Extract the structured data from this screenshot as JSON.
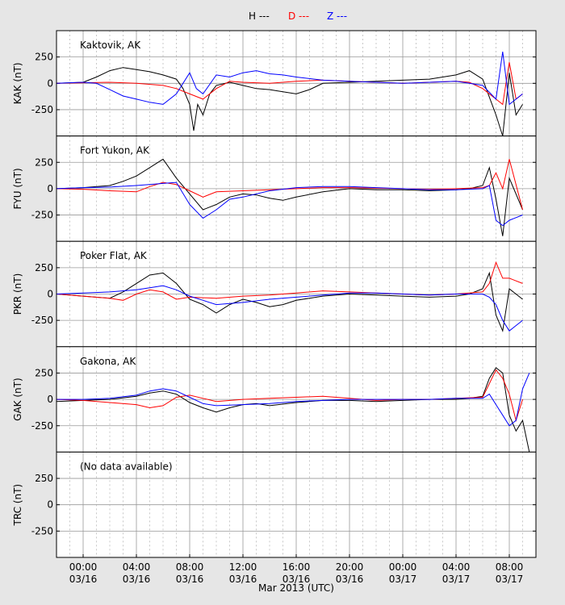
{
  "legend": [
    {
      "label": "H ---",
      "color": "#000000"
    },
    {
      "label": "D ---",
      "color": "#ff0000"
    },
    {
      "label": "Z ---",
      "color": "#0000ff"
    }
  ],
  "chart_data": {
    "type": "line",
    "xlabel": "Mar 2013 (UTC)",
    "xlim_hours": [
      -2.0,
      34.0
    ],
    "xticks": [
      {
        "hour": 0,
        "time": "00:00",
        "date": "03/16"
      },
      {
        "hour": 4,
        "time": "04:00",
        "date": "03/16"
      },
      {
        "hour": 8,
        "time": "08:00",
        "date": "03/16"
      },
      {
        "hour": 12,
        "time": "12:00",
        "date": "03/16"
      },
      {
        "hour": 16,
        "time": "16:00",
        "date": "03/16"
      },
      {
        "hour": 20,
        "time": "20:00",
        "date": "03/16"
      },
      {
        "hour": 24,
        "time": "00:00",
        "date": "03/17"
      },
      {
        "hour": 28,
        "time": "04:00",
        "date": "03/17"
      },
      {
        "hour": 32,
        "time": "08:00",
        "date": "03/17"
      }
    ],
    "ylim": [
      -500,
      500
    ],
    "yticks": [
      250,
      0,
      -250
    ],
    "grid": true,
    "legend_position": "top-center",
    "panels": [
      {
        "station": "Kaktovik, AK",
        "ylabel": "KAK (nT)",
        "series": [
          {
            "name": "H",
            "color": "#000000",
            "x": [
              -2,
              0,
              1,
              2,
              3,
              4,
              5,
              6,
              7,
              7.5,
              8,
              8.3,
              8.6,
              9,
              9.5,
              10,
              11,
              12,
              13,
              14,
              15,
              16,
              17,
              18,
              20,
              22,
              24,
              26,
              28,
              29,
              30,
              31,
              31.5,
              32,
              32.5,
              33
            ],
            "y": [
              0,
              10,
              60,
              120,
              150,
              130,
              110,
              80,
              40,
              -50,
              -200,
              -450,
              -200,
              -300,
              -100,
              -20,
              10,
              -20,
              -50,
              -60,
              -80,
              -100,
              -60,
              0,
              10,
              20,
              30,
              40,
              80,
              120,
              40,
              -300,
              -500,
              100,
              -300,
              -200
            ]
          },
          {
            "name": "D",
            "color": "#ff0000",
            "x": [
              -2,
              0,
              2,
              4,
              6,
              7,
              8,
              9,
              10,
              11,
              12,
              14,
              16,
              18,
              20,
              22,
              24,
              26,
              28,
              29,
              30,
              31,
              31.5,
              32,
              32.5,
              33
            ],
            "y": [
              0,
              5,
              10,
              0,
              -20,
              -50,
              -100,
              -150,
              -50,
              20,
              10,
              0,
              20,
              30,
              20,
              10,
              0,
              10,
              20,
              10,
              -50,
              -150,
              -200,
              200,
              -150,
              -100
            ]
          },
          {
            "name": "Z",
            "color": "#0000ff",
            "x": [
              -2,
              0,
              1,
              2,
              3,
              4,
              5,
              6,
              7,
              8,
              8.5,
              9,
              10,
              11,
              12,
              13,
              14,
              15,
              16,
              18,
              20,
              22,
              24,
              26,
              28,
              29,
              30,
              31,
              31.5,
              32,
              32.5,
              33
            ],
            "y": [
              0,
              10,
              0,
              -60,
              -120,
              -150,
              -180,
              -200,
              -100,
              100,
              -50,
              -100,
              80,
              60,
              100,
              120,
              90,
              80,
              60,
              30,
              20,
              10,
              0,
              10,
              20,
              0,
              -20,
              -150,
              300,
              -200,
              -150,
              -100
            ]
          }
        ]
      },
      {
        "station": "Fort Yukon, AK",
        "ylabel": "FYU (nT)",
        "series": [
          {
            "name": "H",
            "color": "#000000",
            "x": [
              -2,
              0,
              2,
              3,
              4,
              5,
              6,
              7,
              8,
              9,
              10,
              11,
              12,
              13,
              14,
              15,
              16,
              18,
              20,
              22,
              24,
              26,
              28,
              29,
              30,
              30.5,
              31,
              31.5,
              32,
              33
            ],
            "y": [
              0,
              10,
              30,
              70,
              120,
              200,
              280,
              100,
              -50,
              -200,
              -150,
              -80,
              -50,
              -60,
              -90,
              -110,
              -80,
              -30,
              0,
              -10,
              -10,
              -20,
              -10,
              0,
              30,
              200,
              -100,
              -450,
              100,
              -200
            ]
          },
          {
            "name": "D",
            "color": "#ff0000",
            "x": [
              -2,
              0,
              2,
              4,
              5,
              6,
              7,
              8,
              9,
              10,
              12,
              14,
              16,
              18,
              20,
              22,
              24,
              26,
              28,
              30,
              30.5,
              31,
              31.5,
              32,
              33
            ],
            "y": [
              0,
              -5,
              -20,
              -30,
              20,
              60,
              40,
              -20,
              -80,
              -30,
              -20,
              -10,
              0,
              10,
              10,
              5,
              0,
              -5,
              0,
              10,
              30,
              150,
              0,
              280,
              -200
            ]
          },
          {
            "name": "Z",
            "color": "#0000ff",
            "x": [
              -2,
              0,
              2,
              4,
              6,
              7,
              8,
              9,
              10,
              11,
              12,
              14,
              16,
              18,
              20,
              22,
              24,
              26,
              28,
              30,
              30.5,
              31,
              31.5,
              32,
              33
            ],
            "y": [
              0,
              10,
              15,
              30,
              50,
              60,
              -150,
              -280,
              -200,
              -100,
              -80,
              -20,
              10,
              20,
              20,
              10,
              0,
              -10,
              -10,
              0,
              30,
              -300,
              -350,
              -300,
              -250
            ]
          }
        ]
      },
      {
        "station": "Poker Flat, AK",
        "ylabel": "PKR (nT)",
        "series": [
          {
            "name": "H",
            "color": "#000000",
            "x": [
              -2,
              0,
              2,
              3,
              4,
              5,
              6,
              7,
              8,
              9,
              10,
              11,
              12,
              13,
              14,
              15,
              16,
              18,
              20,
              22,
              24,
              26,
              28,
              29,
              30,
              30.5,
              31,
              31.5,
              32,
              33
            ],
            "y": [
              0,
              -20,
              -40,
              20,
              100,
              180,
              200,
              100,
              -50,
              -100,
              -180,
              -100,
              -50,
              -80,
              -120,
              -100,
              -60,
              -20,
              0,
              -10,
              -20,
              -30,
              -20,
              0,
              50,
              200,
              -200,
              -350,
              50,
              -50
            ]
          },
          {
            "name": "D",
            "color": "#ff0000",
            "x": [
              -2,
              0,
              2,
              3,
              4,
              5,
              6,
              7,
              8,
              10,
              12,
              14,
              16,
              18,
              20,
              22,
              24,
              26,
              28,
              30,
              30.5,
              31,
              31.5,
              32,
              33
            ],
            "y": [
              0,
              -20,
              -40,
              -60,
              0,
              40,
              20,
              -50,
              -30,
              -40,
              -20,
              -10,
              10,
              30,
              20,
              10,
              0,
              -10,
              0,
              20,
              100,
              300,
              150,
              150,
              100
            ]
          },
          {
            "name": "Z",
            "color": "#0000ff",
            "x": [
              -2,
              0,
              2,
              4,
              5,
              6,
              7,
              8,
              9,
              10,
              12,
              14,
              16,
              18,
              20,
              22,
              24,
              26,
              28,
              30,
              30.5,
              31,
              31.5,
              32,
              33
            ],
            "y": [
              0,
              10,
              20,
              40,
              60,
              80,
              40,
              -20,
              -60,
              -100,
              -80,
              -50,
              -30,
              -10,
              10,
              10,
              0,
              -10,
              0,
              0,
              -30,
              -100,
              -250,
              -350,
              -250
            ]
          }
        ]
      },
      {
        "station": "Gakona, AK",
        "ylabel": "GAK (nT)",
        "series": [
          {
            "name": "H",
            "color": "#000000",
            "x": [
              -2,
              0,
              2,
              4,
              5,
              6,
              7,
              8,
              9,
              10,
              11,
              12,
              13,
              14,
              16,
              18,
              20,
              22,
              24,
              26,
              28,
              29,
              30,
              30.5,
              31,
              31.5,
              32,
              32.5,
              33,
              33.5
            ],
            "y": [
              -20,
              -10,
              0,
              30,
              60,
              80,
              50,
              -30,
              -80,
              -120,
              -80,
              -50,
              -40,
              -60,
              -30,
              -10,
              -10,
              -20,
              -10,
              0,
              0,
              10,
              30,
              200,
              300,
              250,
              -150,
              -300,
              -200,
              -500
            ]
          },
          {
            "name": "D",
            "color": "#ff0000",
            "x": [
              -2,
              0,
              2,
              4,
              5,
              6,
              7,
              8,
              9,
              10,
              12,
              14,
              16,
              18,
              20,
              22,
              24,
              26,
              28,
              30,
              30.5,
              31,
              31.5,
              32,
              32.5,
              33
            ],
            "y": [
              0,
              -10,
              -30,
              -50,
              -80,
              -60,
              20,
              40,
              10,
              -20,
              0,
              10,
              20,
              30,
              10,
              -10,
              0,
              0,
              10,
              20,
              150,
              280,
              200,
              50,
              -200,
              0
            ]
          },
          {
            "name": "Z",
            "color": "#0000ff",
            "x": [
              -2,
              0,
              2,
              4,
              5,
              6,
              7,
              8,
              9,
              10,
              12,
              14,
              16,
              18,
              20,
              22,
              24,
              26,
              28,
              30,
              30.5,
              31,
              31.5,
              32,
              32.5,
              33,
              33.5
            ],
            "y": [
              0,
              0,
              10,
              40,
              80,
              100,
              80,
              20,
              -40,
              -60,
              -50,
              -40,
              -20,
              -10,
              0,
              0,
              0,
              0,
              10,
              10,
              50,
              -50,
              -150,
              -250,
              -200,
              100,
              250
            ]
          }
        ]
      },
      {
        "station": "(No data available)",
        "ylabel": "TRC (nT)",
        "series": []
      }
    ]
  }
}
